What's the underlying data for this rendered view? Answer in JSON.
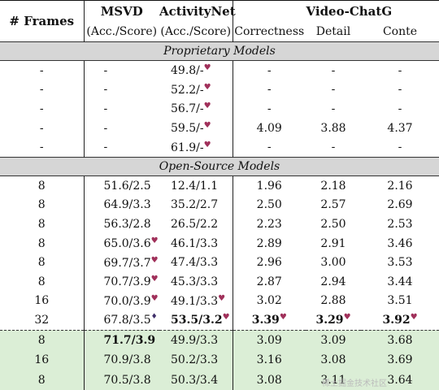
{
  "table": {
    "header": {
      "frames": "# Frames",
      "msvd": "MSVD",
      "activitynet": "ActivityNet",
      "videochatgpt": "Video-ChatG",
      "msvd_sub": "(Acc./Score)",
      "activitynet_sub": "(Acc./Score)",
      "correctness": "Correctness",
      "detail": "Detail",
      "context": "Conte"
    },
    "sections": {
      "proprietary": "Proprietary Models",
      "opensource": "Open-Source Models"
    },
    "proprietary_rows": [
      {
        "frames": "-",
        "msvd": "-",
        "anet": "49.8/-",
        "corr": "-",
        "det": "-",
        "ctx": "-"
      },
      {
        "frames": "-",
        "msvd": "-",
        "anet": "52.2/-",
        "corr": "-",
        "det": "-",
        "ctx": "-"
      },
      {
        "frames": "-",
        "msvd": "-",
        "anet": "56.7/-",
        "corr": "-",
        "det": "-",
        "ctx": "-"
      },
      {
        "frames": "-",
        "msvd": "-",
        "anet": "59.5/-",
        "corr": "4.09",
        "det": "3.88",
        "ctx": "4.37"
      },
      {
        "frames": "-",
        "msvd": "-",
        "anet": "61.9/-",
        "corr": "-",
        "det": "-",
        "ctx": "-"
      }
    ],
    "opensource_rows": [
      {
        "frames": "8",
        "msvd": "51.6/2.5",
        "anet": "12.4/1.1",
        "corr": "1.96",
        "det": "2.18",
        "ctx": "2.16"
      },
      {
        "frames": "8",
        "msvd": "64.9/3.3",
        "anet": "35.2/2.7",
        "corr": "2.50",
        "det": "2.57",
        "ctx": "2.69"
      },
      {
        "frames": "8",
        "msvd": "56.3/2.8",
        "anet": "26.5/2.2",
        "corr": "2.23",
        "det": "2.50",
        "ctx": "2.53"
      },
      {
        "frames": "8",
        "msvd": "65.0/3.6",
        "anet": "46.1/3.3",
        "corr": "2.89",
        "det": "2.91",
        "ctx": "3.46"
      },
      {
        "frames": "8",
        "msvd": "69.7/3.7",
        "anet": "47.4/3.3",
        "corr": "2.96",
        "det": "3.00",
        "ctx": "3.53"
      },
      {
        "frames": "8",
        "msvd": "70.7/3.9",
        "anet": "45.3/3.3",
        "corr": "2.87",
        "det": "2.94",
        "ctx": "3.44"
      },
      {
        "frames": "16",
        "msvd": "70.0/3.9",
        "anet": "49.1/3.3",
        "corr": "3.02",
        "det": "2.88",
        "ctx": "3.51"
      },
      {
        "frames": "32",
        "msvd": "67.8/3.5",
        "anet": "53.5/3.2",
        "corr": "3.39",
        "det": "3.29",
        "ctx": "3.92"
      }
    ],
    "ours_rows": [
      {
        "frames": "8",
        "msvd": "71.7/3.9",
        "anet": "49.9/3.3",
        "corr": "3.09",
        "det": "3.09",
        "ctx": "3.68"
      },
      {
        "frames": "16",
        "msvd": "70.9/3.8",
        "anet": "50.2/3.3",
        "corr": "3.16",
        "det": "3.08",
        "ctx": "3.69"
      },
      {
        "frames": "8",
        "msvd": "70.5/3.8",
        "anet": "50.3/3.4",
        "corr": "3.08",
        "det": "3.11",
        "ctx": "3.64"
      }
    ]
  },
  "markers": {
    "heart": "♥",
    "diamond": "♦"
  },
  "colors": {
    "section_bg": "#d6d6d6",
    "ours_bg": "#dbeed6",
    "heart": "#a0305a"
  },
  "watermark": "稀土掘金技术社区"
}
